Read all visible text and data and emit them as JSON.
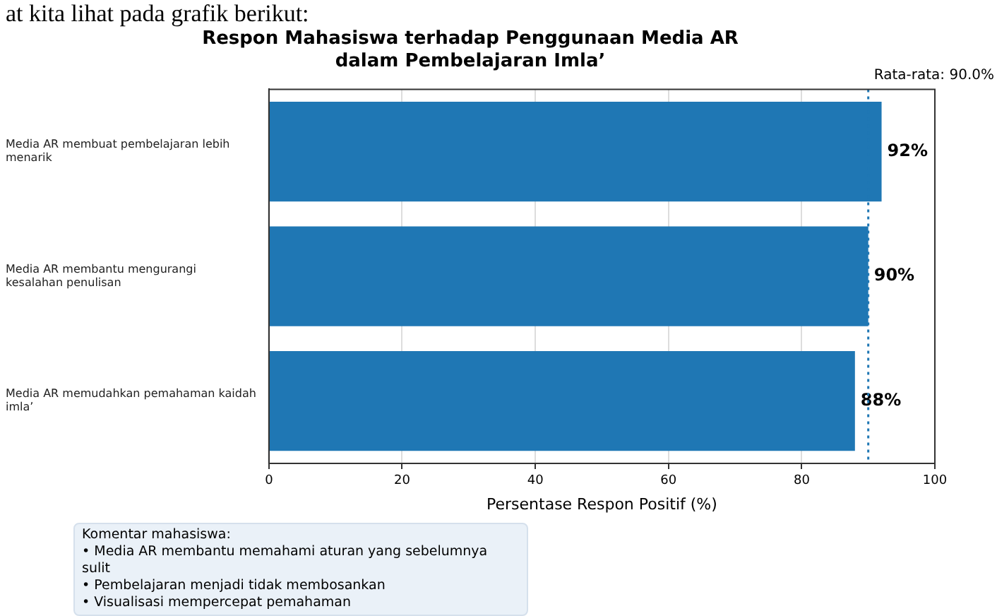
{
  "chart_data": {
    "type": "bar",
    "orientation": "horizontal",
    "title": "Respon Mahasiswa terhadap Penggunaan Media AR\ndalam Pembelajaran Imla’",
    "xlabel": "Persentase Respon Positif (%)",
    "categories": [
      "Media AR membuat pembelajaran lebih menarik",
      "Media AR membantu mengurangi kesalahan penulisan",
      "Media AR memudahkan pemahaman kaidah imla’"
    ],
    "values": [
      92,
      90,
      88
    ],
    "color": "#1f77b4",
    "value_labels": [
      "92%",
      "90%",
      "88%"
    ],
    "xlim": [
      0,
      100
    ],
    "xticks": [
      0,
      20,
      40,
      60,
      80,
      100
    ],
    "grid": "x",
    "ref_lines": [
      {
        "axis": "x",
        "value": 90,
        "label": "Rata-rata: 90.0%",
        "color": "#1f77b4",
        "line_style": "dotted"
      }
    ],
    "annotations": [
      "at kita lihat pada grafik berikut:",
      "Komentar mahasiswa:\n• Media AR membantu memahami aturan yang sebelumnya sulit\n• Pembelajaran menjadi tidak membosankan\n• Visualisasi mempercepat pemahaman"
    ]
  }
}
